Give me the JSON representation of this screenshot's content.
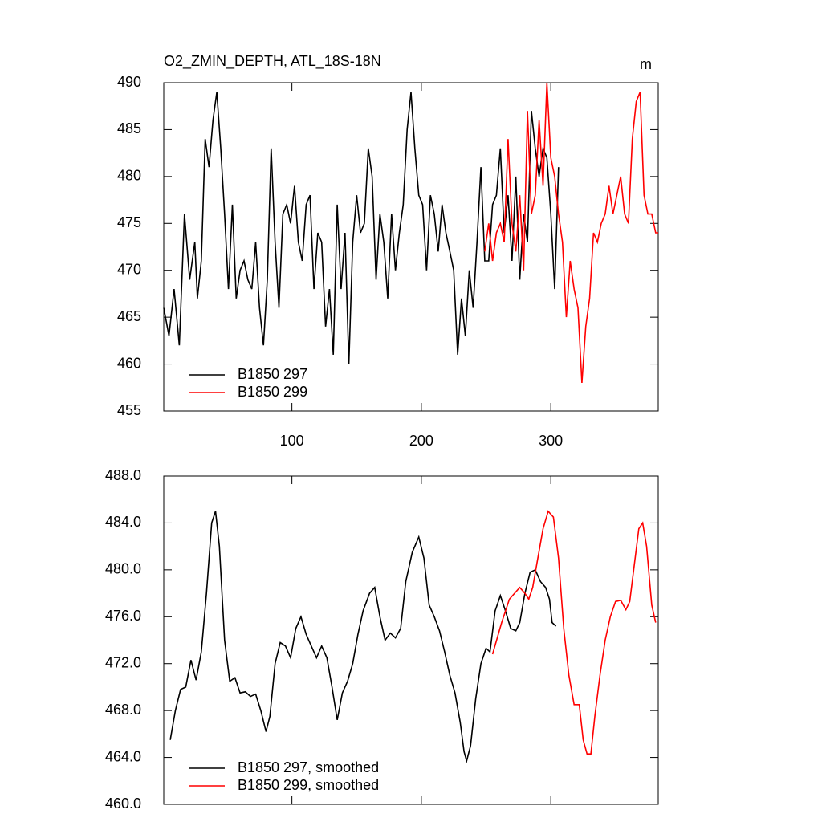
{
  "chart_data": [
    {
      "type": "line",
      "title": "O2_ZMIN_DEPTH, ATL_18S-18N",
      "units": "m",
      "xlim": [
        1,
        383
      ],
      "xticks": [
        100,
        200,
        300
      ],
      "xtick_labels_shown": true,
      "ylim": [
        455,
        490
      ],
      "yticks": [
        455,
        460,
        465,
        470,
        475,
        480,
        485,
        490
      ],
      "legend": "lower left",
      "series": [
        {
          "name": "B1850 297",
          "color": "#000000",
          "x": [
            1,
            5,
            9,
            13,
            17,
            21,
            25,
            27,
            30,
            33,
            36,
            39,
            42,
            45,
            48,
            51,
            54,
            57,
            60,
            63,
            66,
            69,
            72,
            75,
            78,
            81,
            84,
            87,
            90,
            93,
            96,
            99,
            102,
            105,
            108,
            111,
            114,
            117,
            120,
            123,
            126,
            129,
            132,
            135,
            138,
            141,
            144,
            147,
            150,
            153,
            156,
            159,
            162,
            165,
            168,
            171,
            174,
            177,
            180,
            183,
            186,
            189,
            192,
            195,
            198,
            201,
            204,
            207,
            210,
            213,
            216,
            219,
            222,
            225,
            228,
            231,
            234,
            237,
            240,
            243,
            246,
            249,
            252,
            255,
            258,
            261,
            264,
            267,
            270,
            273,
            276,
            279,
            282,
            285,
            288,
            291,
            294,
            297,
            300,
            303,
            306
          ],
          "values": [
            466,
            463,
            468,
            462,
            476,
            469,
            473,
            467,
            471,
            484,
            481,
            486,
            489,
            483,
            476,
            468,
            477,
            467,
            470,
            471,
            469,
            468,
            473,
            466,
            462,
            469,
            483,
            473,
            466,
            476,
            477,
            475,
            479,
            473,
            471,
            477,
            478,
            468,
            474,
            473,
            464,
            468,
            461,
            477,
            468,
            474,
            460,
            473,
            478,
            474,
            475,
            483,
            480,
            469,
            476,
            473,
            467,
            476,
            470,
            474,
            477,
            485,
            489,
            483,
            478,
            477,
            470,
            478,
            476,
            472,
            477,
            474,
            472,
            470,
            461,
            467,
            463,
            470,
            466,
            473,
            481,
            471,
            471,
            477,
            478,
            483,
            474,
            478,
            471,
            480,
            469,
            476,
            473,
            487,
            483,
            480,
            483,
            482,
            476,
            468,
            481
          ]
        },
        {
          "name": "B1850 299",
          "color": "#ff0000",
          "x": [
            249,
            252,
            255,
            258,
            261,
            264,
            267,
            270,
            273,
            276,
            279,
            282,
            285,
            288,
            291,
            294,
            297,
            300,
            303,
            306,
            309,
            312,
            315,
            318,
            321,
            324,
            327,
            330,
            333,
            336,
            339,
            342,
            345,
            348,
            351,
            354,
            357,
            360,
            363,
            366,
            369,
            372,
            375,
            378,
            381,
            383
          ],
          "values": [
            472,
            475,
            471,
            474,
            475,
            473,
            484,
            475,
            472,
            478,
            470,
            487,
            476,
            478,
            486,
            479,
            490,
            482,
            480,
            476,
            473,
            465,
            471,
            468,
            466,
            458,
            464,
            467,
            474,
            473,
            475,
            476,
            479,
            476,
            478,
            480,
            476,
            475,
            484,
            488,
            489,
            478,
            476,
            476,
            474,
            474
          ]
        }
      ]
    },
    {
      "type": "line",
      "xlim": [
        1,
        383
      ],
      "xticks": [
        100,
        200,
        300
      ],
      "xtick_labels_shown": false,
      "ylim": [
        460,
        488
      ],
      "yticks": [
        {
          "value": 460,
          "label": "460.0"
        },
        {
          "value": 464,
          "label": "464.0"
        },
        {
          "value": 468,
          "label": "468.0"
        },
        {
          "value": 472,
          "label": "472.0"
        },
        {
          "value": 476,
          "label": "476.0"
        },
        {
          "value": 480,
          "label": "480.0"
        },
        {
          "value": 484,
          "label": "484.0"
        },
        {
          "value": 488,
          "label": "488.0"
        }
      ],
      "legend": "lower left",
      "series": [
        {
          "name": "B1850 297, smoothed",
          "color": "#000000",
          "x": [
            6,
            10,
            14,
            18,
            22,
            26,
            30,
            34,
            38,
            41,
            44,
            48,
            52,
            56,
            60,
            64,
            68,
            72,
            76,
            80,
            83,
            87,
            91,
            95,
            99,
            103,
            107,
            111,
            115,
            119,
            123,
            127,
            131,
            135,
            139,
            143,
            147,
            151,
            155,
            160,
            164,
            168,
            172,
            176,
            180,
            184,
            188,
            193,
            198,
            202,
            206,
            210,
            214,
            218,
            222,
            226,
            230,
            233,
            235,
            238,
            242,
            246,
            250,
            253,
            257,
            261,
            265,
            269,
            273,
            276,
            280,
            284,
            288,
            292,
            296,
            299,
            301,
            304
          ],
          "values": [
            465.5,
            468,
            469.8,
            470,
            472.3,
            470.6,
            473,
            478,
            484,
            485,
            482,
            474,
            470.5,
            470.8,
            469.5,
            469.6,
            469.2,
            469.4,
            468,
            466.2,
            467.5,
            472,
            473.8,
            473.5,
            472.5,
            475,
            476,
            474.5,
            473.5,
            472.5,
            473.5,
            472.5,
            470,
            467.2,
            469.5,
            470.5,
            472,
            474.5,
            476.5,
            478,
            478.5,
            476,
            474,
            474.6,
            474.2,
            475,
            479,
            481.5,
            482.8,
            481,
            477,
            476,
            474.8,
            473,
            471,
            469.5,
            467,
            464.5,
            463.7,
            465,
            469,
            472,
            473.3,
            473,
            476.5,
            477.8,
            476.5,
            475,
            474.8,
            475.5,
            478,
            479.8,
            480,
            479,
            478.5,
            477.5,
            475.5,
            475.2
          ]
        },
        {
          "name": "B1850 299, smoothed",
          "color": "#ff0000",
          "x": [
            255,
            262,
            268,
            272,
            276,
            280,
            283,
            286,
            290,
            294,
            298,
            302,
            306,
            310,
            314,
            318,
            322,
            325,
            328,
            331,
            334,
            338,
            342,
            346,
            350,
            354,
            358,
            361,
            364,
            368,
            371,
            374,
            378,
            381
          ],
          "values": [
            472.8,
            475.5,
            477.5,
            478,
            478.5,
            478,
            477.5,
            478.5,
            481,
            483.5,
            485,
            484.5,
            481,
            475,
            471,
            468.5,
            468.5,
            465.5,
            464.3,
            464.3,
            467.5,
            471,
            474,
            476,
            477.3,
            477.4,
            476.6,
            477.3,
            480,
            483.5,
            484,
            482,
            477,
            475.5
          ]
        }
      ]
    }
  ]
}
